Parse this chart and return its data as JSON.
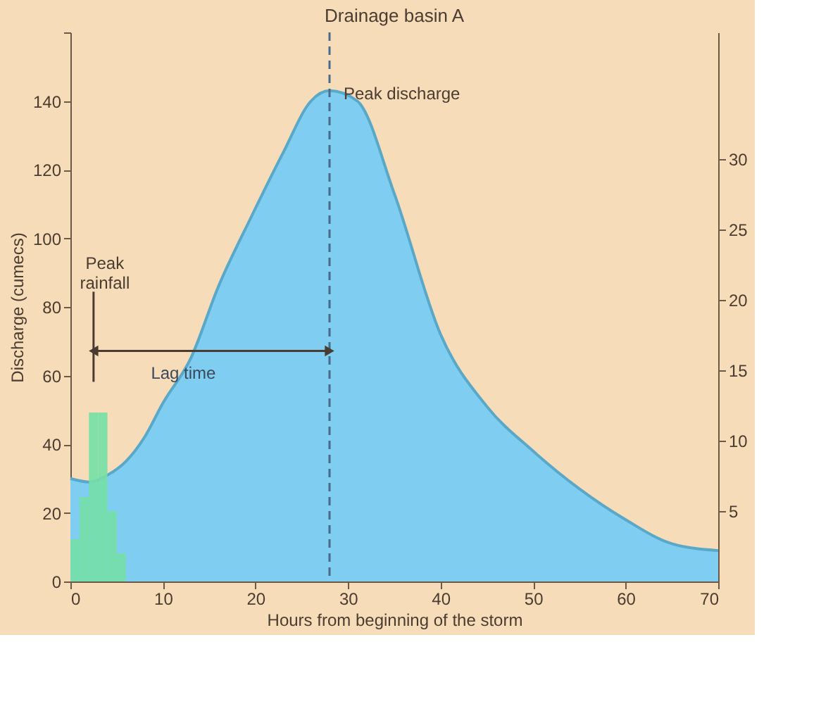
{
  "chart_data": {
    "type": "area",
    "title": "Drainage basin A",
    "xlabel": "Hours from beginning of the storm",
    "ylabel": "Discharge (cumecs)",
    "xlim": [
      0,
      70
    ],
    "xticks": [
      0,
      10,
      20,
      30,
      40,
      50,
      60,
      70
    ],
    "ylim": [
      0,
      160
    ],
    "yticks": [
      0,
      20,
      40,
      60,
      80,
      100,
      120,
      140,
      {
        "value": 160,
        "label": null
      }
    ],
    "y2lim": [
      0,
      39
    ],
    "y2ticks": [
      5,
      10,
      15,
      20,
      25,
      30
    ],
    "series": [
      {
        "color": "#7fcdf0",
        "x": [
          0,
          2,
          4,
          6,
          8,
          10,
          13,
          16,
          19.5,
          23,
          26,
          28,
          31,
          35,
          40,
          45,
          50,
          55,
          60,
          65,
          70
        ],
        "values": [
          30,
          29,
          31,
          35,
          42,
          52,
          65,
          86,
          106,
          125,
          140,
          143,
          140,
          113,
          72,
          51,
          38,
          27,
          18,
          11,
          9
        ]
      },
      {
        "type": "bar",
        "axis": "y2",
        "color": "#74dfa6",
        "x": [
          0.5,
          1.5,
          2.5,
          3.5,
          4.5,
          5.5
        ],
        "values": [
          3,
          6,
          12,
          12,
          5,
          2
        ]
      }
    ],
    "ref_lines": [
      {
        "axis": "x",
        "value": 28,
        "line_style": "dashed",
        "color": "#4a6a8a"
      }
    ],
    "annotations": [
      {
        "text": "Peak discharge",
        "x": 28,
        "y": 143
      },
      "Peak rainfall",
      "Lag time"
    ]
  }
}
